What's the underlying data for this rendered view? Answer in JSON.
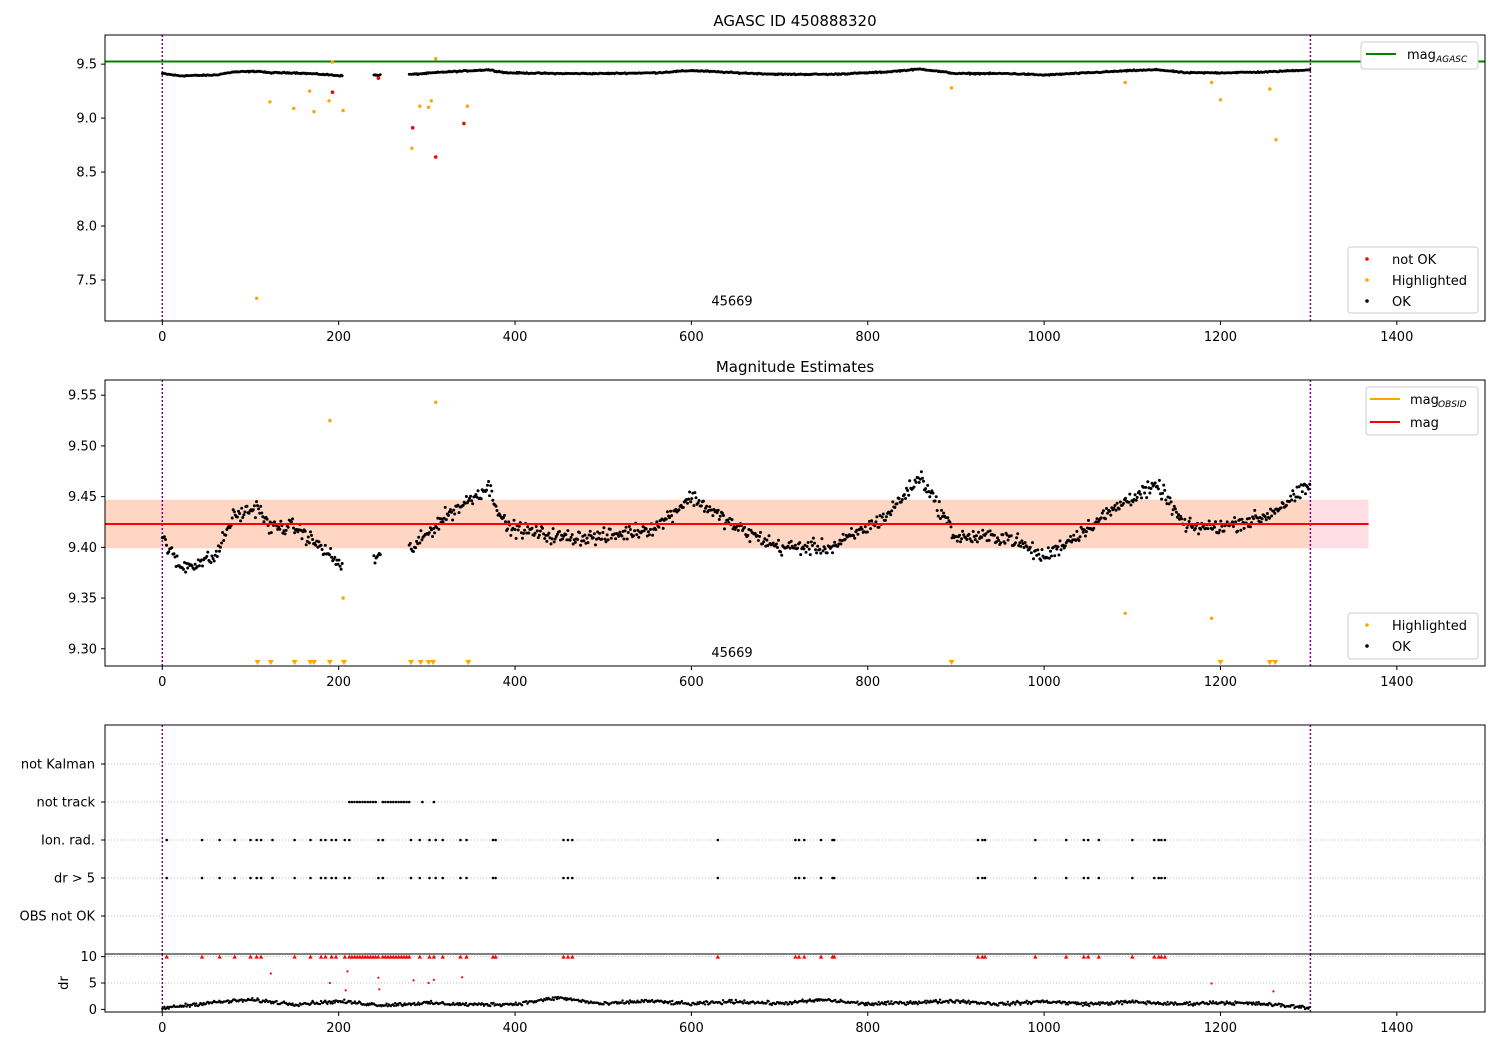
{
  "figure": {
    "title_top": "AGASC ID 450888320",
    "title_mid": "Magnitude Estimates",
    "obsid_label": "45669"
  },
  "colors": {
    "ok": "#000000",
    "highlighted": "#ffa500",
    "not_ok": "#ff0000",
    "mag_agasc": "#008000",
    "mag": "#ff0000",
    "mag_obsid": "#ffa500",
    "band": "#ffc0cb",
    "vline": "#800080"
  },
  "chart_data": [
    {
      "type": "scatter",
      "panel": "top",
      "title": "AGASC ID 450888320",
      "xlim": [
        -65,
        1500
      ],
      "ylim": [
        7.12,
        9.77
      ],
      "x_ticks": [
        0,
        200,
        400,
        600,
        800,
        1000,
        1200,
        1400
      ],
      "y_ticks": [
        7.5,
        8.0,
        8.5,
        9.0,
        9.5
      ],
      "hlines": [
        {
          "name": "mag_AGASC",
          "y": 9.525
        }
      ],
      "vlines": [
        0,
        1302
      ],
      "text_annotation": {
        "x": 655,
        "y": 7.2,
        "text": "45669"
      },
      "legend_lines": [
        {
          "name": "mag",
          "subscript": "AGASC"
        }
      ],
      "legend_points": [
        "not OK",
        "Highlighted",
        "OK"
      ],
      "ok_series": {
        "name": "OK",
        "segments": [
          [
            0,
            205,
            9.4
          ],
          [
            240,
            248,
            9.38
          ],
          [
            280,
            1302,
            9.42
          ]
        ],
        "profile": [
          [
            0,
            9.41
          ],
          [
            20,
            9.38
          ],
          [
            60,
            9.39
          ],
          [
            80,
            9.43
          ],
          [
            110,
            9.44
          ],
          [
            120,
            9.42
          ],
          [
            150,
            9.42
          ],
          [
            180,
            9.4
          ],
          [
            205,
            9.38
          ],
          [
            285,
            9.4
          ],
          [
            320,
            9.43
          ],
          [
            370,
            9.46
          ],
          [
            390,
            9.42
          ],
          [
            450,
            9.41
          ],
          [
            500,
            9.41
          ],
          [
            560,
            9.42
          ],
          [
            600,
            9.45
          ],
          [
            650,
            9.42
          ],
          [
            700,
            9.4
          ],
          [
            760,
            9.4
          ],
          [
            820,
            9.43
          ],
          [
            860,
            9.47
          ],
          [
            900,
            9.41
          ],
          [
            960,
            9.41
          ],
          [
            1000,
            9.39
          ],
          [
            1050,
            9.42
          ],
          [
            1100,
            9.45
          ],
          [
            1130,
            9.46
          ],
          [
            1160,
            9.42
          ],
          [
            1200,
            9.42
          ],
          [
            1250,
            9.43
          ],
          [
            1302,
            9.46
          ]
        ]
      },
      "highlighted_points": [
        [
          107,
          7.33
        ],
        [
          122,
          9.15
        ],
        [
          149,
          9.09
        ],
        [
          167,
          9.25
        ],
        [
          172,
          9.06
        ],
        [
          189,
          9.16
        ],
        [
          193,
          9.52
        ],
        [
          205,
          9.07
        ],
        [
          283,
          8.72
        ],
        [
          292,
          9.11
        ],
        [
          302,
          9.1
        ],
        [
          305,
          9.16
        ],
        [
          310,
          9.55
        ],
        [
          346,
          9.11
        ],
        [
          895,
          9.28
        ],
        [
          1092,
          9.33
        ],
        [
          1190,
          9.33
        ],
        [
          1200,
          9.17
        ],
        [
          1256,
          9.27
        ],
        [
          1263,
          8.8
        ]
      ],
      "not_ok_points": [
        [
          193,
          9.24
        ],
        [
          284,
          8.91
        ],
        [
          310,
          8.64
        ],
        [
          342,
          8.95
        ],
        [
          245,
          9.37
        ]
      ]
    },
    {
      "type": "scatter",
      "panel": "middle",
      "title": "Magnitude Estimates",
      "xlim": [
        -65,
        1500
      ],
      "ylim": [
        9.283,
        9.565
      ],
      "x_ticks": [
        0,
        200,
        400,
        600,
        800,
        1000,
        1200,
        1400
      ],
      "y_ticks": [
        9.3,
        9.35,
        9.4,
        9.45,
        9.5,
        9.55
      ],
      "mag_line": 9.423,
      "band": [
        9.399,
        9.447
      ],
      "band_xrange": [
        -65,
        1368
      ],
      "vlines": [
        0,
        1302
      ],
      "text_annotation": {
        "x": 655,
        "y": 9.29,
        "text": "45669"
      },
      "legend_lines": [
        {
          "name": "mag",
          "subscript": "OBSID"
        },
        {
          "name": "mag",
          "subscript": ""
        }
      ],
      "legend_points": [
        "Highlighted",
        "OK"
      ],
      "ok_series": {
        "name": "OK",
        "segments": [
          [
            0,
            205,
            9.4
          ],
          [
            240,
            248,
            9.38
          ],
          [
            280,
            1302,
            9.42
          ]
        ],
        "profile": [
          [
            0,
            9.41
          ],
          [
            20,
            9.38
          ],
          [
            60,
            9.39
          ],
          [
            80,
            9.43
          ],
          [
            110,
            9.44
          ],
          [
            120,
            9.42
          ],
          [
            150,
            9.42
          ],
          [
            180,
            9.4
          ],
          [
            205,
            9.38
          ],
          [
            285,
            9.4
          ],
          [
            320,
            9.43
          ],
          [
            370,
            9.46
          ],
          [
            390,
            9.42
          ],
          [
            450,
            9.41
          ],
          [
            500,
            9.41
          ],
          [
            560,
            9.42
          ],
          [
            600,
            9.45
          ],
          [
            650,
            9.42
          ],
          [
            700,
            9.4
          ],
          [
            760,
            9.4
          ],
          [
            820,
            9.43
          ],
          [
            860,
            9.47
          ],
          [
            900,
            9.41
          ],
          [
            960,
            9.41
          ],
          [
            1000,
            9.39
          ],
          [
            1050,
            9.42
          ],
          [
            1100,
            9.45
          ],
          [
            1130,
            9.46
          ],
          [
            1160,
            9.42
          ],
          [
            1200,
            9.42
          ],
          [
            1250,
            9.43
          ],
          [
            1302,
            9.46
          ]
        ]
      },
      "highlighted_points": [
        [
          190,
          9.525
        ],
        [
          205,
          9.35
        ],
        [
          310,
          9.543
        ],
        [
          1092,
          9.335
        ],
        [
          1190,
          9.33
        ]
      ],
      "out_of_range_markers": [
        108,
        123,
        150,
        168,
        172,
        190,
        206,
        282,
        293,
        302,
        307,
        347,
        895,
        1200,
        1256,
        1262
      ]
    },
    {
      "type": "scatter",
      "panel": "flags",
      "categories": [
        "OBS not OK",
        "dr > 5",
        "Ion. rad.",
        "not track",
        "not Kalman"
      ],
      "xlim": [
        -65,
        1500
      ],
      "vlines": [
        0,
        1302
      ],
      "flags": {
        "dr > 5": [
          5,
          45,
          65,
          82,
          100,
          107,
          112,
          125,
          150,
          168,
          180,
          185,
          192,
          197,
          207,
          212,
          245,
          250,
          282,
          292,
          303,
          310,
          318,
          338,
          345,
          375,
          378,
          455,
          460,
          465,
          630,
          718,
          722,
          728,
          747,
          760,
          762,
          925,
          930,
          933,
          990,
          1025,
          1045,
          1050,
          1062,
          1100,
          1125,
          1130,
          1133,
          1137
        ],
        "Ion. rad.": [
          5,
          45,
          65,
          82,
          100,
          107,
          112,
          125,
          150,
          168,
          180,
          185,
          192,
          197,
          207,
          212,
          245,
          250,
          282,
          292,
          303,
          310,
          318,
          338,
          345,
          375,
          378,
          455,
          460,
          465,
          630,
          718,
          722,
          728,
          747,
          760,
          762,
          925,
          930,
          933,
          990,
          1025,
          1045,
          1050,
          1062,
          1100,
          1125,
          1130,
          1133,
          1137
        ],
        "not track": [
          212,
          215,
          218,
          221,
          224,
          227,
          230,
          233,
          236,
          239,
          242,
          250,
          253,
          256,
          259,
          262,
          265,
          268,
          271,
          274,
          277,
          280,
          295,
          308
        ]
      }
    },
    {
      "type": "scatter",
      "panel": "dr",
      "ylabel": "dr",
      "xlim": [
        -65,
        1500
      ],
      "ylim": [
        -0.5,
        10.5
      ],
      "y_ticks": [
        0,
        5,
        10
      ],
      "x_ticks": [
        0,
        200,
        400,
        600,
        800,
        1000,
        1200,
        1400
      ],
      "vlines": [
        0,
        1302
      ],
      "capped_points_x": [
        5,
        45,
        65,
        82,
        100,
        107,
        112,
        150,
        168,
        180,
        185,
        192,
        197,
        207,
        212,
        215,
        218,
        221,
        224,
        227,
        230,
        233,
        236,
        239,
        242,
        245,
        250,
        253,
        256,
        259,
        262,
        265,
        268,
        271,
        274,
        277,
        280,
        292,
        303,
        308,
        318,
        338,
        345,
        375,
        378,
        455,
        460,
        465,
        630,
        718,
        722,
        728,
        747,
        760,
        762,
        925,
        930,
        933,
        990,
        1025,
        1045,
        1050,
        1062,
        1100,
        1125,
        1130,
        1133,
        1137
      ],
      "scatter_high_points": [
        [
          123,
          6.8
        ],
        [
          190,
          5.0
        ],
        [
          208,
          3.6
        ],
        [
          210,
          7.2
        ],
        [
          245,
          6.0
        ],
        [
          246,
          3.8
        ],
        [
          285,
          5.5
        ],
        [
          302,
          5.0
        ],
        [
          308,
          5.6
        ],
        [
          340,
          6.1
        ],
        [
          1190,
          4.9
        ],
        [
          1260,
          3.4
        ]
      ],
      "baseline_profile": [
        [
          0,
          0.2
        ],
        [
          50,
          1.2
        ],
        [
          100,
          1.8
        ],
        [
          150,
          1.0
        ],
        [
          200,
          1.5
        ],
        [
          250,
          0.8
        ],
        [
          300,
          1.2
        ],
        [
          350,
          0.9
        ],
        [
          400,
          1.0
        ],
        [
          450,
          2.2
        ],
        [
          500,
          1.0
        ],
        [
          550,
          1.6
        ],
        [
          600,
          1.0
        ],
        [
          650,
          1.5
        ],
        [
          700,
          1.1
        ],
        [
          750,
          1.8
        ],
        [
          800,
          1.0
        ],
        [
          850,
          1.3
        ],
        [
          900,
          1.6
        ],
        [
          950,
          1.0
        ],
        [
          1000,
          1.5
        ],
        [
          1050,
          1.0
        ],
        [
          1100,
          1.4
        ],
        [
          1150,
          1.0
        ],
        [
          1200,
          1.3
        ],
        [
          1250,
          1.0
        ],
        [
          1302,
          0.3
        ]
      ]
    }
  ]
}
